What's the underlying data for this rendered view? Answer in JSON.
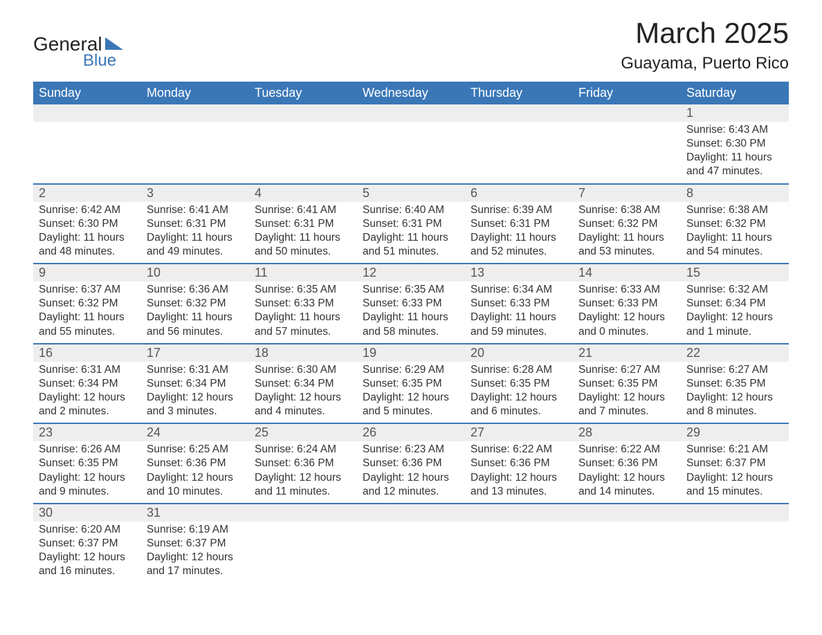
{
  "colors": {
    "header_bg": "#3a77b7",
    "header_text": "#ffffff",
    "daynum_bg": "#eeeeee",
    "row_divider": "#3a77b7",
    "body_text": "#333333",
    "page_bg": "#ffffff"
  },
  "logo": {
    "line1": "General",
    "line2": "Blue"
  },
  "title": {
    "month": "March 2025",
    "location": "Guayama, Puerto Rico"
  },
  "weekdays": [
    "Sunday",
    "Monday",
    "Tuesday",
    "Wednesday",
    "Thursday",
    "Friday",
    "Saturday"
  ],
  "weeks": [
    [
      null,
      null,
      null,
      null,
      null,
      null,
      {
        "n": "1",
        "sr": "Sunrise: 6:43 AM",
        "ss": "Sunset: 6:30 PM",
        "dl": "Daylight: 11 hours and 47 minutes."
      }
    ],
    [
      {
        "n": "2",
        "sr": "Sunrise: 6:42 AM",
        "ss": "Sunset: 6:30 PM",
        "dl": "Daylight: 11 hours and 48 minutes."
      },
      {
        "n": "3",
        "sr": "Sunrise: 6:41 AM",
        "ss": "Sunset: 6:31 PM",
        "dl": "Daylight: 11 hours and 49 minutes."
      },
      {
        "n": "4",
        "sr": "Sunrise: 6:41 AM",
        "ss": "Sunset: 6:31 PM",
        "dl": "Daylight: 11 hours and 50 minutes."
      },
      {
        "n": "5",
        "sr": "Sunrise: 6:40 AM",
        "ss": "Sunset: 6:31 PM",
        "dl": "Daylight: 11 hours and 51 minutes."
      },
      {
        "n": "6",
        "sr": "Sunrise: 6:39 AM",
        "ss": "Sunset: 6:31 PM",
        "dl": "Daylight: 11 hours and 52 minutes."
      },
      {
        "n": "7",
        "sr": "Sunrise: 6:38 AM",
        "ss": "Sunset: 6:32 PM",
        "dl": "Daylight: 11 hours and 53 minutes."
      },
      {
        "n": "8",
        "sr": "Sunrise: 6:38 AM",
        "ss": "Sunset: 6:32 PM",
        "dl": "Daylight: 11 hours and 54 minutes."
      }
    ],
    [
      {
        "n": "9",
        "sr": "Sunrise: 6:37 AM",
        "ss": "Sunset: 6:32 PM",
        "dl": "Daylight: 11 hours and 55 minutes."
      },
      {
        "n": "10",
        "sr": "Sunrise: 6:36 AM",
        "ss": "Sunset: 6:32 PM",
        "dl": "Daylight: 11 hours and 56 minutes."
      },
      {
        "n": "11",
        "sr": "Sunrise: 6:35 AM",
        "ss": "Sunset: 6:33 PM",
        "dl": "Daylight: 11 hours and 57 minutes."
      },
      {
        "n": "12",
        "sr": "Sunrise: 6:35 AM",
        "ss": "Sunset: 6:33 PM",
        "dl": "Daylight: 11 hours and 58 minutes."
      },
      {
        "n": "13",
        "sr": "Sunrise: 6:34 AM",
        "ss": "Sunset: 6:33 PM",
        "dl": "Daylight: 11 hours and 59 minutes."
      },
      {
        "n": "14",
        "sr": "Sunrise: 6:33 AM",
        "ss": "Sunset: 6:33 PM",
        "dl": "Daylight: 12 hours and 0 minutes."
      },
      {
        "n": "15",
        "sr": "Sunrise: 6:32 AM",
        "ss": "Sunset: 6:34 PM",
        "dl": "Daylight: 12 hours and 1 minute."
      }
    ],
    [
      {
        "n": "16",
        "sr": "Sunrise: 6:31 AM",
        "ss": "Sunset: 6:34 PM",
        "dl": "Daylight: 12 hours and 2 minutes."
      },
      {
        "n": "17",
        "sr": "Sunrise: 6:31 AM",
        "ss": "Sunset: 6:34 PM",
        "dl": "Daylight: 12 hours and 3 minutes."
      },
      {
        "n": "18",
        "sr": "Sunrise: 6:30 AM",
        "ss": "Sunset: 6:34 PM",
        "dl": "Daylight: 12 hours and 4 minutes."
      },
      {
        "n": "19",
        "sr": "Sunrise: 6:29 AM",
        "ss": "Sunset: 6:35 PM",
        "dl": "Daylight: 12 hours and 5 minutes."
      },
      {
        "n": "20",
        "sr": "Sunrise: 6:28 AM",
        "ss": "Sunset: 6:35 PM",
        "dl": "Daylight: 12 hours and 6 minutes."
      },
      {
        "n": "21",
        "sr": "Sunrise: 6:27 AM",
        "ss": "Sunset: 6:35 PM",
        "dl": "Daylight: 12 hours and 7 minutes."
      },
      {
        "n": "22",
        "sr": "Sunrise: 6:27 AM",
        "ss": "Sunset: 6:35 PM",
        "dl": "Daylight: 12 hours and 8 minutes."
      }
    ],
    [
      {
        "n": "23",
        "sr": "Sunrise: 6:26 AM",
        "ss": "Sunset: 6:35 PM",
        "dl": "Daylight: 12 hours and 9 minutes."
      },
      {
        "n": "24",
        "sr": "Sunrise: 6:25 AM",
        "ss": "Sunset: 6:36 PM",
        "dl": "Daylight: 12 hours and 10 minutes."
      },
      {
        "n": "25",
        "sr": "Sunrise: 6:24 AM",
        "ss": "Sunset: 6:36 PM",
        "dl": "Daylight: 12 hours and 11 minutes."
      },
      {
        "n": "26",
        "sr": "Sunrise: 6:23 AM",
        "ss": "Sunset: 6:36 PM",
        "dl": "Daylight: 12 hours and 12 minutes."
      },
      {
        "n": "27",
        "sr": "Sunrise: 6:22 AM",
        "ss": "Sunset: 6:36 PM",
        "dl": "Daylight: 12 hours and 13 minutes."
      },
      {
        "n": "28",
        "sr": "Sunrise: 6:22 AM",
        "ss": "Sunset: 6:36 PM",
        "dl": "Daylight: 12 hours and 14 minutes."
      },
      {
        "n": "29",
        "sr": "Sunrise: 6:21 AM",
        "ss": "Sunset: 6:37 PM",
        "dl": "Daylight: 12 hours and 15 minutes."
      }
    ],
    [
      {
        "n": "30",
        "sr": "Sunrise: 6:20 AM",
        "ss": "Sunset: 6:37 PM",
        "dl": "Daylight: 12 hours and 16 minutes."
      },
      {
        "n": "31",
        "sr": "Sunrise: 6:19 AM",
        "ss": "Sunset: 6:37 PM",
        "dl": "Daylight: 12 hours and 17 minutes."
      },
      null,
      null,
      null,
      null,
      null
    ]
  ]
}
